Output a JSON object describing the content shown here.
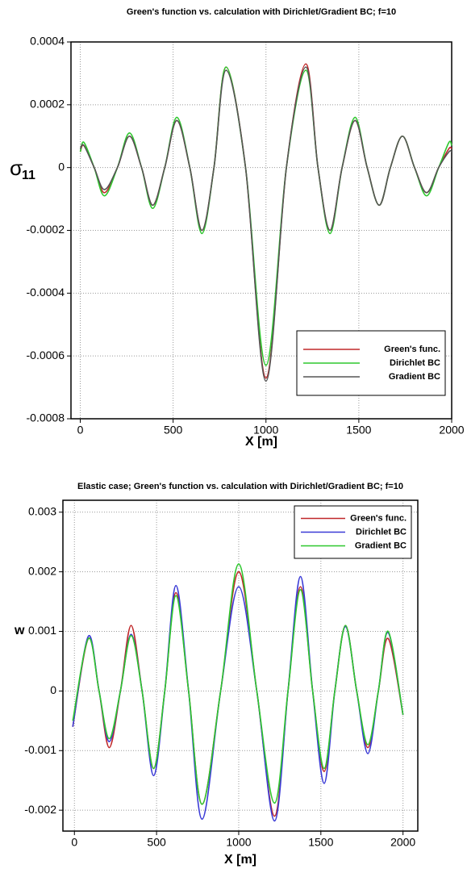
{
  "chart_data": [
    {
      "type": "line",
      "title": "Green's function vs. calculation with Dirichlet/Gradient BC; f=10",
      "x_label": "X [m]",
      "y_label": "σ",
      "y_label_subscript": "11",
      "x": [
        0,
        20,
        75,
        130,
        200,
        265,
        330,
        390,
        455,
        520,
        590,
        655,
        720,
        785,
        890,
        1000,
        1110,
        1215,
        1280,
        1345,
        1410,
        1480,
        1545,
        1610,
        1670,
        1735,
        1800,
        1865,
        1930,
        1985,
        2000
      ],
      "series": [
        {
          "name": "Green's func.",
          "color": "#c0282a",
          "values": [
            5e-05,
            7e-05,
            0,
            -8e-05,
            0,
            0.0001,
            0,
            -0.00012,
            0,
            0.00015,
            0,
            -0.0002,
            0,
            0.00032,
            0,
            -0.00067,
            0,
            0.00033,
            0,
            -0.0002,
            0,
            0.00015,
            0,
            -0.00012,
            0,
            0.0001,
            0,
            -8e-05,
            0,
            6e-05,
            6e-05
          ]
        },
        {
          "name": "Dirichlet  BC",
          "color": "#2ec72e",
          "values": [
            5e-05,
            8e-05,
            0,
            -9e-05,
            0,
            0.00011,
            0,
            -0.00013,
            0,
            0.00016,
            0,
            -0.00021,
            0,
            0.00032,
            0,
            -0.00063,
            0,
            0.00031,
            0,
            -0.00021,
            0,
            0.00016,
            0,
            -0.00012,
            0,
            0.0001,
            0,
            -9e-05,
            0,
            8e-05,
            7e-05
          ]
        },
        {
          "name": "Gradient  BC",
          "color": "#555555",
          "values": [
            6e-05,
            7e-05,
            0,
            -7e-05,
            0,
            0.0001,
            0,
            -0.00012,
            0,
            0.00015,
            0,
            -0.0002,
            0,
            0.00031,
            0,
            -0.00068,
            0,
            0.00032,
            0,
            -0.0002,
            0,
            0.00015,
            0,
            -0.00012,
            0,
            0.0001,
            0,
            -8e-05,
            0,
            5e-05,
            5e-05
          ]
        }
      ],
      "xlim": [
        -50,
        2000
      ],
      "ylim": [
        -0.0008,
        0.0004
      ],
      "xticks": [
        0,
        500,
        1000,
        1500,
        2000
      ],
      "yticks": [
        -0.0008,
        -0.0006,
        -0.0004,
        -0.0002,
        0,
        0.0002,
        0.0004
      ],
      "grid": true,
      "legend": "lower right"
    },
    {
      "type": "line",
      "title": "Elastic case; Green's function vs. calculation with Dirichlet/Gradient BC; f=10",
      "x_label": "X [m]",
      "y_label": "w",
      "x": [
        -10,
        85,
        150,
        212,
        280,
        345,
        412,
        482,
        550,
        618,
        695,
        777,
        890,
        1000,
        1110,
        1218,
        1300,
        1376,
        1450,
        1520,
        1585,
        1650,
        1718,
        1786,
        1850,
        1910,
        2000
      ],
      "series": [
        {
          "name": "Green's func.",
          "color": "#c0282a",
          "values": [
            -0.0006,
            0.00088,
            0,
            -0.00095,
            0,
            0.0011,
            0,
            -0.0013,
            0,
            0.00165,
            0,
            -0.0019,
            0,
            0.002,
            0,
            -0.0021,
            0,
            0.00175,
            0,
            -0.00135,
            0,
            0.0011,
            0,
            -0.00095,
            0,
            0.00088,
            -0.0004
          ]
        },
        {
          "name": "Dirichlet BC",
          "color": "#3a3ad6",
          "values": [
            -0.0006,
            0.00092,
            0,
            -0.00085,
            0,
            0.00095,
            0,
            -0.00142,
            0,
            0.00177,
            0,
            -0.00215,
            0,
            0.00175,
            0,
            -0.00218,
            0,
            0.00192,
            0,
            -0.00155,
            0,
            0.00108,
            0,
            -0.00105,
            0,
            0.00098,
            -0.0004
          ]
        },
        {
          "name": "Gradient BC",
          "color": "#2ec72e",
          "values": [
            -0.0005,
            0.00088,
            0,
            -0.0008,
            0,
            0.00093,
            0,
            -0.0013,
            0,
            0.0016,
            0,
            -0.0019,
            0,
            0.00213,
            0,
            -0.00188,
            0,
            0.0017,
            0,
            -0.0013,
            0,
            0.0011,
            0,
            -0.0009,
            0,
            0.001,
            -0.0004
          ]
        }
      ],
      "xlim": [
        -70,
        2090
      ],
      "ylim": [
        -0.00235,
        0.0032
      ],
      "xticks": [
        0,
        500,
        1000,
        1500,
        2000
      ],
      "yticks": [
        -0.002,
        -0.001,
        0,
        0.001,
        0.002,
        0.003
      ],
      "grid": true,
      "legend": "upper right"
    }
  ]
}
